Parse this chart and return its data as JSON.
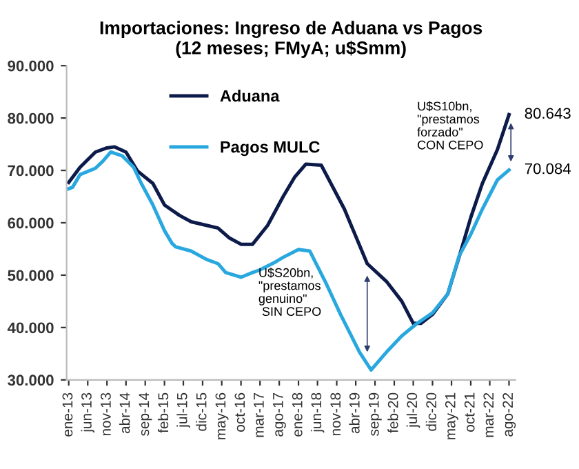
{
  "chart_data": {
    "type": "line",
    "title": "Importaciones: Ingreso de Aduana vs Pagos\n(12 meses; FMyA; u$Smm)",
    "series": [
      {
        "name": "Aduana",
        "color": "#0d1b4a",
        "x": [
          "2013-01",
          "2013-04",
          "2013-08",
          "2013-11",
          "2014-01",
          "2014-04",
          "2014-07",
          "2014-11",
          "2015-02",
          "2015-06",
          "2015-09",
          "2016-01",
          "2016-04",
          "2016-07",
          "2016-10",
          "2017-01",
          "2017-05",
          "2017-09",
          "2017-12",
          "2018-03",
          "2018-07",
          "2019-01",
          "2019-07",
          "2019-12",
          "2020-04",
          "2020-07",
          "2020-09",
          "2020-12",
          "2021-04",
          "2021-07",
          "2021-10",
          "2022-01",
          "2022-05",
          "2022-08"
        ],
        "values": [
          67700,
          70600,
          73500,
          74300,
          74500,
          73500,
          69900,
          67500,
          63400,
          61400,
          60200,
          59500,
          59000,
          57100,
          55900,
          55900,
          59500,
          65000,
          68700,
          71200,
          71000,
          62600,
          52200,
          48800,
          45000,
          40800,
          40800,
          42500,
          46400,
          53500,
          61000,
          67500,
          74000,
          80643
        ]
      },
      {
        "name": "Pagos MULC",
        "color": "#29a8e0",
        "x": [
          "2013-01",
          "2013-02",
          "2013-04",
          "2013-08",
          "2013-10",
          "2013-12",
          "2014-03",
          "2014-06",
          "2014-08",
          "2014-11",
          "2015-02",
          "2015-04",
          "2015-05",
          "2015-09",
          "2016-01",
          "2016-04",
          "2016-06",
          "2016-10",
          "2017-01",
          "2017-03",
          "2017-07",
          "2017-09",
          "2018-01",
          "2018-04",
          "2018-08",
          "2018-12",
          "2019-05",
          "2019-08",
          "2019-12",
          "2020-04",
          "2020-08",
          "2020-12",
          "2021-04",
          "2021-07",
          "2021-10",
          "2022-01",
          "2022-05",
          "2022-08"
        ],
        "values": [
          66500,
          66800,
          69200,
          70400,
          71800,
          73500,
          72800,
          70600,
          67500,
          63400,
          58500,
          56100,
          55400,
          54600,
          53000,
          52200,
          50500,
          49600,
          50500,
          51000,
          52500,
          53400,
          54900,
          54600,
          48800,
          42500,
          35300,
          31900,
          35300,
          38400,
          40800,
          42800,
          46400,
          53700,
          57800,
          62600,
          68200,
          70084
        ]
      }
    ],
    "xlim": [
      "2012-12-15",
      "2022-09-20"
    ],
    "xticks": [
      {
        "value": "2013-01",
        "label": "ene-13"
      },
      {
        "value": "2013-06",
        "label": "jun-13"
      },
      {
        "value": "2013-11",
        "label": "nov-13"
      },
      {
        "value": "2014-04",
        "label": "abr-14"
      },
      {
        "value": "2014-09",
        "label": "sep-14"
      },
      {
        "value": "2015-02",
        "label": "feb-15"
      },
      {
        "value": "2015-07",
        "label": "jul-15"
      },
      {
        "value": "2015-12",
        "label": "dic-15"
      },
      {
        "value": "2016-05",
        "label": "may-16"
      },
      {
        "value": "2016-10",
        "label": "oct-16"
      },
      {
        "value": "2017-03",
        "label": "mar-17"
      },
      {
        "value": "2017-08",
        "label": "ago-17"
      },
      {
        "value": "2018-01",
        "label": "ene-18"
      },
      {
        "value": "2018-06",
        "label": "jun-18"
      },
      {
        "value": "2018-11",
        "label": "nov-18"
      },
      {
        "value": "2019-04",
        "label": "abr-19"
      },
      {
        "value": "2019-09",
        "label": "sep-19"
      },
      {
        "value": "2020-02",
        "label": "feb-20"
      },
      {
        "value": "2020-07",
        "label": "jul-20"
      },
      {
        "value": "2020-12",
        "label": "dic-20"
      },
      {
        "value": "2021-05",
        "label": "may-21"
      },
      {
        "value": "2021-10",
        "label": "oct-21"
      },
      {
        "value": "2022-03",
        "label": "mar-22"
      },
      {
        "value": "2022-08",
        "label": "ago-22"
      }
    ],
    "ylim": [
      30000,
      90000
    ],
    "yticks": [
      {
        "value": 30000,
        "label": "30.000"
      },
      {
        "value": 40000,
        "label": "40.000"
      },
      {
        "value": 50000,
        "label": "50.000"
      },
      {
        "value": 60000,
        "label": "60.000"
      },
      {
        "value": 70000,
        "label": "70.000"
      },
      {
        "value": 80000,
        "label": "80.000"
      },
      {
        "value": 90000,
        "label": "90.000"
      }
    ],
    "annotations": [
      {
        "text": "80.643",
        "x": "2022-08",
        "y": 80643
      },
      {
        "text": "70.084",
        "x": "2022-08",
        "y": 70084
      },
      "U$S20bn,\n\"prestamos\ngenuino\"\n SIN CEPO",
      "U$S10bn,\n\"prestamos\nforzado\"\nCON CEPO"
    ],
    "legend": "top left",
    "grid": false,
    "marker": "none",
    "line_style": "solid"
  }
}
